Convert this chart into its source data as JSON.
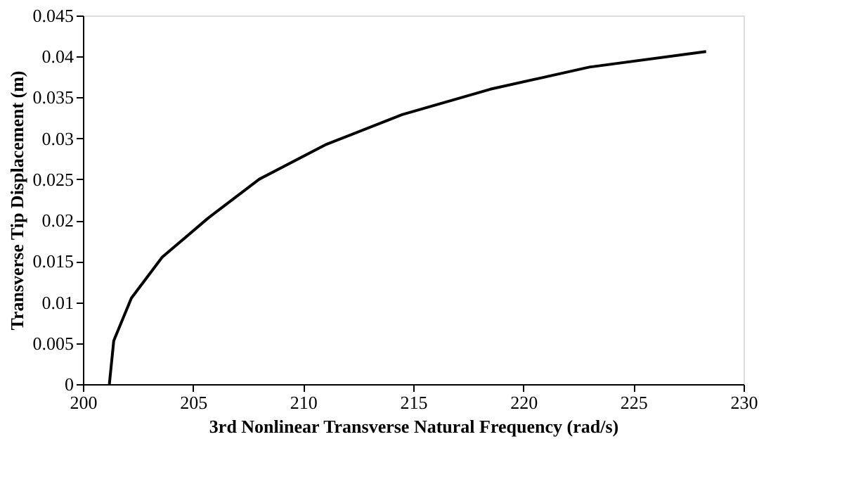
{
  "chart_data": {
    "type": "line",
    "xlabel": "3rd Nonlinear Transverse Natural Frequency (rad/s)",
    "ylabel": "Transverse Tip Displacement (m)",
    "x": [
      201.2,
      201.4,
      202.2,
      203.6,
      205.7,
      208.0,
      211.0,
      214.5,
      218.5,
      223.0,
      228.3
    ],
    "series": [
      {
        "color": "#000000",
        "values": [
          0,
          0.0053,
          0.0105,
          0.0155,
          0.0203,
          0.025,
          0.0292,
          0.0329,
          0.036,
          0.0387,
          0.0406
        ]
      }
    ],
    "xlim": [
      200,
      230
    ],
    "xticks": [
      200,
      205,
      210,
      215,
      220,
      225,
      230
    ],
    "ylim": [
      0,
      0.045
    ],
    "yticks": [
      0,
      0.005,
      0.01,
      0.015,
      0.02,
      0.025,
      0.03,
      0.035,
      0.04,
      0.045
    ],
    "grid": false,
    "marker": "none",
    "line_style": "solid"
  }
}
